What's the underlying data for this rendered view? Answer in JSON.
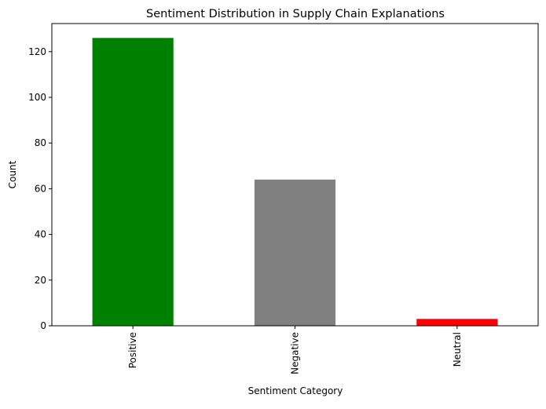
{
  "chart_data": {
    "type": "bar",
    "title": "Sentiment Distribution in Supply Chain Explanations",
    "xlabel": "Sentiment Category",
    "ylabel": "Count",
    "categories": [
      "Positive",
      "Negative",
      "Neutral"
    ],
    "values": [
      126,
      64,
      3
    ],
    "colors": [
      "#008000",
      "#808080",
      "#ff0000"
    ],
    "ylim": [
      0,
      132.3
    ],
    "yticks": [
      0,
      20,
      40,
      60,
      80,
      100,
      120
    ],
    "grid": false,
    "legend": "none",
    "xtick_rotation": "vertical"
  }
}
